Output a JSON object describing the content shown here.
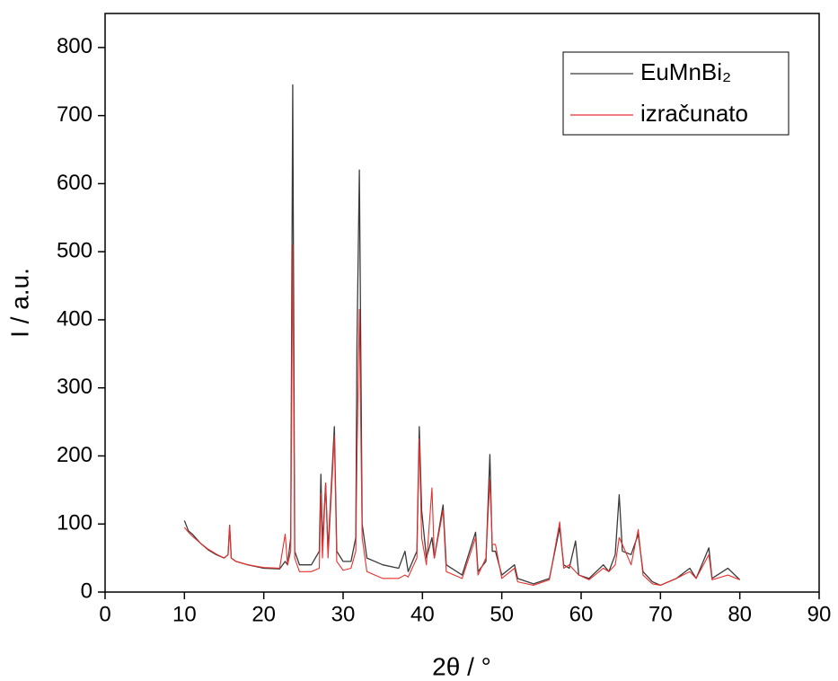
{
  "chart_data": {
    "type": "line",
    "xlabel": "2θ / °",
    "ylabel": "I / a.u.",
    "x": [
      10,
      10.5,
      11,
      12,
      13,
      14,
      15,
      15.5,
      15.7,
      15.9,
      16.5,
      18,
      20,
      22,
      22.7,
      23,
      23.4,
      23.65,
      23.9,
      24.5,
      26,
      27,
      27.2,
      27.4,
      27.8,
      28.1,
      28.9,
      29.2,
      30,
      31,
      31.6,
      31.75,
      32.05,
      32.4,
      33,
      35,
      37,
      37.8,
      38.2,
      39.3,
      39.6,
      39.9,
      40.5,
      41.2,
      41.5,
      42.6,
      43,
      45,
      46.7,
      47,
      48,
      48.5,
      48.8,
      49.2,
      50,
      51.6,
      52,
      54,
      56,
      57.3,
      57.8,
      58.5,
      59.3,
      59.7,
      61,
      62.8,
      63.5,
      64.3,
      64.8,
      65.2,
      66.3,
      67.2,
      67.8,
      69,
      70,
      72,
      73.7,
      74.5,
      76.1,
      76.5,
      78.5,
      80
    ],
    "series": [
      {
        "name": "EuMnBi₂",
        "color": "#3a3a3a",
        "values": [
          105,
          90,
          85,
          72,
          62,
          55,
          50,
          55,
          98,
          50,
          45,
          40,
          35,
          34,
          45,
          40,
          80,
          745,
          60,
          40,
          40,
          60,
          173,
          70,
          160,
          60,
          243,
          60,
          45,
          45,
          80,
          365,
          620,
          100,
          50,
          40,
          35,
          60,
          30,
          60,
          243,
          120,
          50,
          80,
          50,
          128,
          40,
          25,
          88,
          30,
          45,
          202,
          60,
          60,
          25,
          40,
          20,
          12,
          20,
          95,
          40,
          35,
          75,
          25,
          20,
          40,
          30,
          55,
          143,
          60,
          55,
          85,
          30,
          15,
          10,
          20,
          35,
          20,
          65,
          20,
          35,
          18
        ]
      },
      {
        "name": "izračunato",
        "color": "#e8302e",
        "values": [
          95,
          88,
          82,
          72,
          63,
          56,
          50,
          55,
          98,
          50,
          45,
          40,
          36,
          35,
          85,
          40,
          60,
          510,
          50,
          30,
          30,
          35,
          145,
          50,
          160,
          50,
          230,
          45,
          32,
          35,
          60,
          200,
          415,
          80,
          30,
          20,
          20,
          25,
          22,
          50,
          225,
          80,
          40,
          153,
          50,
          120,
          30,
          20,
          80,
          25,
          50,
          165,
          70,
          70,
          20,
          35,
          15,
          10,
          18,
          103,
          35,
          40,
          30,
          25,
          18,
          35,
          30,
          40,
          80,
          70,
          40,
          92,
          25,
          12,
          10,
          20,
          30,
          20,
          55,
          18,
          25,
          18
        ]
      }
    ],
    "xlim": [
      0,
      90
    ],
    "xticks": [
      0,
      10,
      20,
      30,
      40,
      50,
      60,
      70,
      80,
      90
    ],
    "ylim": [
      0,
      850
    ],
    "yticks": [
      0,
      100,
      200,
      300,
      400,
      500,
      600,
      700,
      800
    ],
    "legend": "upper right"
  }
}
